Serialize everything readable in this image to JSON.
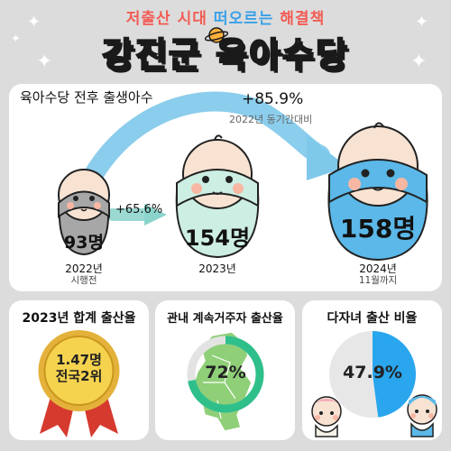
{
  "header": {
    "subtitle_part1": "저출산 시대",
    "subtitle_part2": "떠오르는",
    "subtitle_part3": "해결책",
    "title_part1": "강진군",
    "title_part2": "육아수당"
  },
  "births": {
    "title": "육아수당 전후 출생아수",
    "bars": [
      {
        "year": "2022년",
        "sub": "시행전",
        "count": "93명"
      },
      {
        "year": "2023년",
        "sub": "",
        "count": "154명"
      },
      {
        "year": "2024년",
        "sub": "11월까지",
        "count": "158명"
      }
    ],
    "growth_small": "+65.6%",
    "growth_big": "+85.9%",
    "growth_big_caption": "2022년 동기간대비"
  },
  "cards": {
    "fertility": {
      "title": "2023년 합계 출산율",
      "medal_line1": "1.47명",
      "medal_line2": "전국2위"
    },
    "resident": {
      "title": "관내 계속거주자 출산율",
      "percent": "72%",
      "value": 72
    },
    "multichild": {
      "title": "다자녀 출산 비율",
      "percent": "47.9%",
      "value": 47.9
    }
  },
  "colors": {
    "arrow": "#7ec8ea",
    "baby_grey": "#a7a7a7",
    "baby_mint": "#cdeee2",
    "baby_blue": "#5bb8e8",
    "ring_green": "#2fbf8a",
    "pie_blue": "#29a6ee",
    "medal_gold": "#f2c94c",
    "ribbon_red": "#d63a2e"
  },
  "icons": [
    "sparkle-icon",
    "sparkle-icon",
    "sparkle-icon",
    "sparkle-icon",
    "sparkle-icon",
    "planet-icon",
    "arrow-icon",
    "medal-icon",
    "map-icon",
    "baby-icon"
  ]
}
